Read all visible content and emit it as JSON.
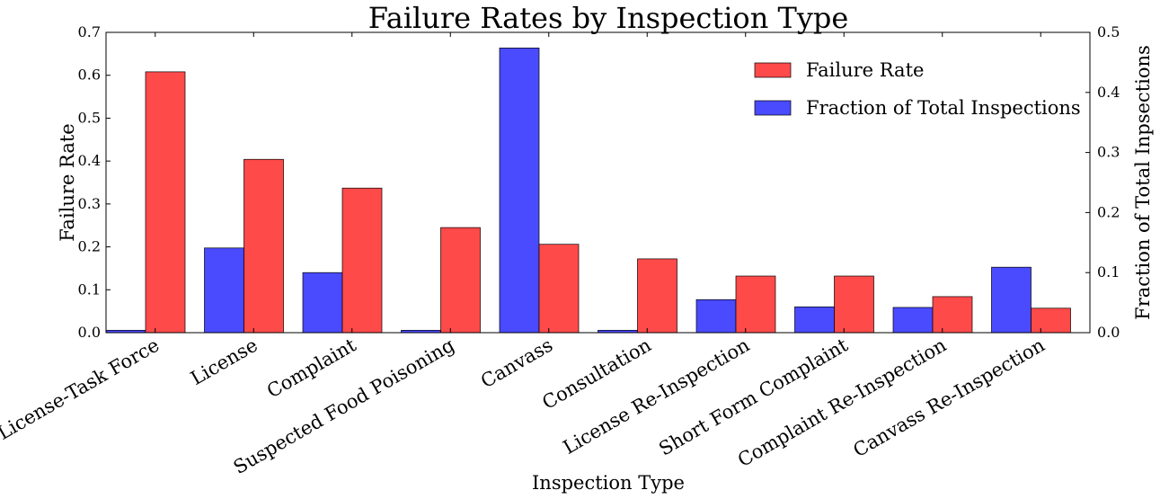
{
  "chart_data": {
    "type": "bar",
    "title": "Failure Rates by Inspection Type",
    "xlabel": "Inspection Type",
    "ylabel_left": "Failure Rate",
    "ylabel_right": "Fraction of Total Inpsections",
    "ylim_left": [
      0,
      0.7
    ],
    "ylim_right": [
      0,
      0.5
    ],
    "yticks_left": [
      "0.0",
      "0.1",
      "0.2",
      "0.3",
      "0.4",
      "0.5",
      "0.6",
      "0.7"
    ],
    "yticks_right": [
      "0.0",
      "0.1",
      "0.2",
      "0.3",
      "0.4",
      "0.5"
    ],
    "grid": false,
    "legend_position": "top-right",
    "categories": [
      "License-Task Force",
      "License",
      "Complaint",
      "Suspected Food Poisoning",
      "Canvass",
      "Consultation",
      "License Re-Inspection",
      "Short Form Complaint",
      "Complaint Re-Inspection",
      "Canvass Re-Inspection"
    ],
    "series": [
      {
        "name": "Fraction of Total Inspections",
        "axis": "right",
        "color": "#4a4aff",
        "values": [
          0.004,
          0.141,
          0.1,
          0.004,
          0.474,
          0.004,
          0.055,
          0.043,
          0.042,
          0.109
        ]
      },
      {
        "name": "Failure Rate",
        "axis": "left",
        "color": "#ff4a4a",
        "values": [
          0.608,
          0.404,
          0.337,
          0.245,
          0.206,
          0.172,
          0.132,
          0.132,
          0.084,
          0.057
        ]
      }
    ]
  }
}
